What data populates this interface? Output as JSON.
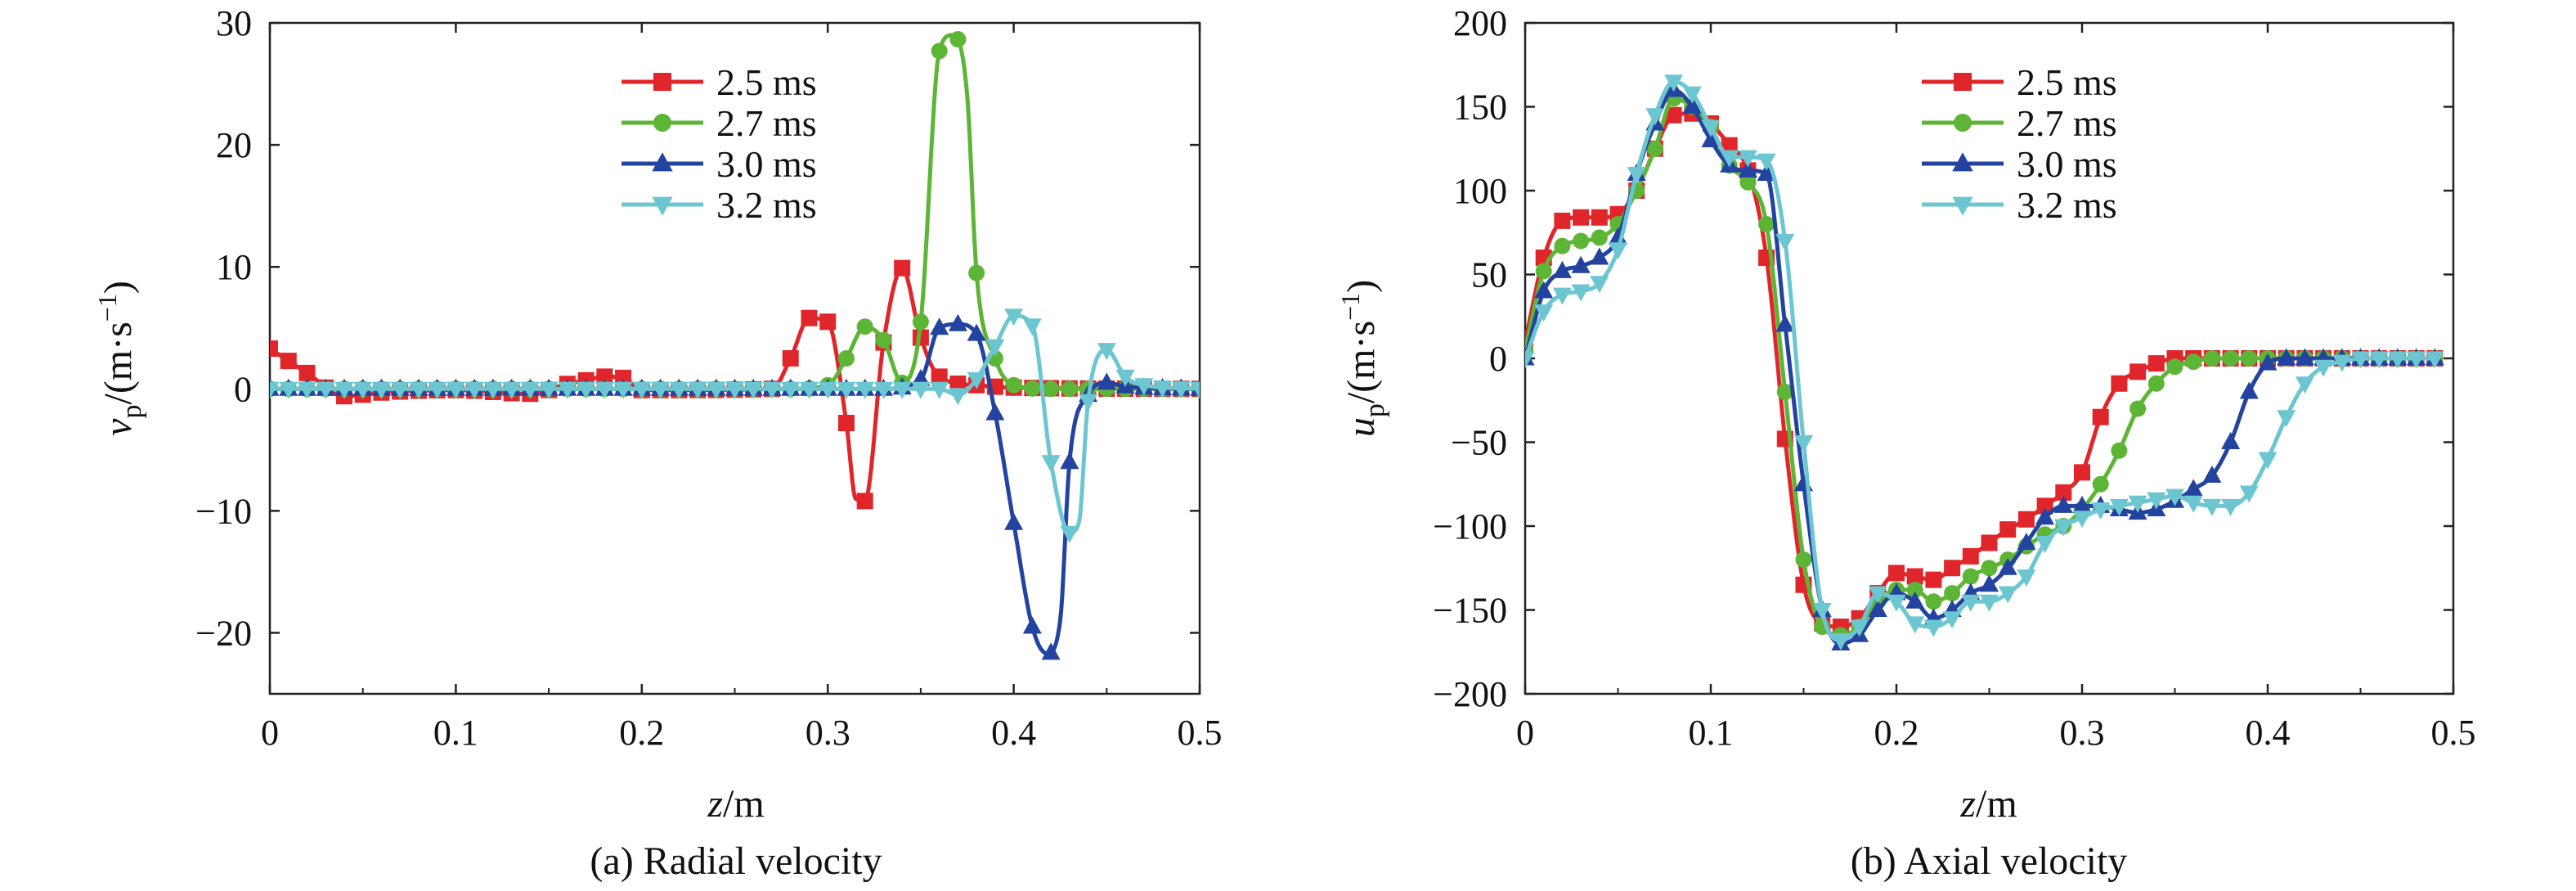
{
  "chart_data": [
    {
      "type": "line",
      "caption": "(a) Radial velocity",
      "xlabel": "z/m",
      "ylabel": "v_p/(m·s^-1)",
      "ylabel_parts": {
        "main": "v",
        "sub": "p",
        "unit": "/(m·s",
        "sup": "−1",
        "close": ")"
      },
      "xlabel_parts": {
        "main": "z",
        "unit": "/m"
      },
      "xlim": [
        0,
        0.5
      ],
      "ylim": [
        -25,
        30
      ],
      "xticks": [
        "0",
        "0.1",
        "0.2",
        "0.3",
        "0.4",
        "0.5"
      ],
      "xtick_values": [
        0,
        0.1,
        0.2,
        0.3,
        0.4,
        0.5
      ],
      "yticks": [
        "30",
        "20",
        "10",
        "0",
        "−10",
        "−20"
      ],
      "ytick_values": [
        30,
        20,
        10,
        0,
        -10,
        -20
      ],
      "legend_position": "top-center",
      "grid": false,
      "series": [
        {
          "name": "2.5 ms",
          "color": "#e0262b",
          "marker": "square",
          "x": [
            0,
            0.02,
            0.04,
            0.06,
            0.1,
            0.14,
            0.16,
            0.17,
            0.18,
            0.19,
            0.2,
            0.27,
            0.28,
            0.29,
            0.3,
            0.31,
            0.315,
            0.32,
            0.33,
            0.34,
            0.35,
            0.36,
            0.38,
            0.4,
            0.5
          ],
          "y": [
            3.3,
            1.3,
            -0.6,
            -0.3,
            -0.1,
            -0.4,
            0.4,
            0.7,
            1.0,
            0.9,
            -0.1,
            0,
            2.5,
            5.8,
            5.5,
            -2.8,
            -9.0,
            -9.2,
            3.8,
            9.9,
            4.2,
            1.0,
            0.3,
            0.1,
            0
          ],
          "markers_x": [
            0,
            0.01,
            0.02,
            0.03,
            0.04,
            0.05,
            0.06,
            0.07,
            0.08,
            0.09,
            0.1,
            0.11,
            0.12,
            0.13,
            0.14,
            0.15,
            0.16,
            0.17,
            0.18,
            0.19,
            0.2,
            0.21,
            0.22,
            0.23,
            0.24,
            0.25,
            0.26,
            0.27,
            0.28,
            0.29,
            0.3,
            0.31,
            0.32,
            0.33,
            0.34,
            0.35,
            0.36,
            0.37,
            0.38,
            0.39,
            0.4,
            0.41,
            0.42,
            0.43,
            0.44,
            0.45,
            0.46,
            0.47,
            0.48,
            0.49,
            0.5
          ]
        },
        {
          "name": "2.7 ms",
          "color": "#5db535",
          "marker": "circle",
          "x": [
            0,
            0.28,
            0.3,
            0.31,
            0.32,
            0.33,
            0.34,
            0.35,
            0.36,
            0.367,
            0.375,
            0.38,
            0.39,
            0.4,
            0.42,
            0.5
          ],
          "y": [
            0,
            0,
            0.3,
            2.5,
            5.1,
            4.0,
            0.5,
            5.5,
            27.7,
            29.0,
            24.0,
            9.5,
            2.5,
            0.3,
            0,
            0
          ],
          "markers_x": [
            0,
            0.01,
            0.02,
            0.03,
            0.04,
            0.05,
            0.06,
            0.07,
            0.08,
            0.09,
            0.1,
            0.11,
            0.12,
            0.13,
            0.14,
            0.15,
            0.16,
            0.17,
            0.18,
            0.19,
            0.2,
            0.21,
            0.22,
            0.23,
            0.24,
            0.25,
            0.26,
            0.27,
            0.28,
            0.29,
            0.3,
            0.31,
            0.32,
            0.33,
            0.34,
            0.35,
            0.36,
            0.37,
            0.38,
            0.39,
            0.4,
            0.41,
            0.42,
            0.43,
            0.44,
            0.45,
            0.46,
            0.47,
            0.48,
            0.49,
            0.5
          ]
        },
        {
          "name": "3.0 ms",
          "color": "#2343a0",
          "marker": "triangle-up",
          "x": [
            0,
            0.33,
            0.35,
            0.36,
            0.37,
            0.38,
            0.39,
            0.4,
            0.41,
            0.418,
            0.425,
            0.43,
            0.44,
            0.45,
            0.46,
            0.5
          ],
          "y": [
            0,
            0,
            0.8,
            5.0,
            5.3,
            4.5,
            -2.0,
            -11.0,
            -19.5,
            -21.7,
            -19.0,
            -6.0,
            -0.5,
            0.5,
            0.2,
            0
          ],
          "markers_x": [
            0,
            0.01,
            0.02,
            0.03,
            0.04,
            0.05,
            0.06,
            0.07,
            0.08,
            0.09,
            0.1,
            0.11,
            0.12,
            0.13,
            0.14,
            0.15,
            0.16,
            0.17,
            0.18,
            0.19,
            0.2,
            0.21,
            0.22,
            0.23,
            0.24,
            0.25,
            0.26,
            0.27,
            0.28,
            0.29,
            0.3,
            0.31,
            0.32,
            0.33,
            0.34,
            0.35,
            0.36,
            0.37,
            0.38,
            0.39,
            0.4,
            0.41,
            0.42,
            0.43,
            0.44,
            0.45,
            0.46,
            0.47,
            0.48,
            0.49,
            0.5
          ]
        },
        {
          "name": "3.2 ms",
          "color": "#6cc6d1",
          "marker": "triangle-down",
          "x": [
            0,
            0.36,
            0.37,
            0.38,
            0.39,
            0.4,
            0.41,
            0.42,
            0.43,
            0.435,
            0.44,
            0.45,
            0.46,
            0.47,
            0.5
          ],
          "y": [
            0,
            0,
            -0.5,
            0.8,
            3.5,
            6.0,
            5.2,
            -6.0,
            -11.8,
            -11.0,
            -1.0,
            3.2,
            1.0,
            0.3,
            0
          ],
          "markers_x": [
            0,
            0.01,
            0.02,
            0.03,
            0.04,
            0.05,
            0.06,
            0.07,
            0.08,
            0.09,
            0.1,
            0.11,
            0.12,
            0.13,
            0.14,
            0.15,
            0.16,
            0.17,
            0.18,
            0.19,
            0.2,
            0.21,
            0.22,
            0.23,
            0.24,
            0.25,
            0.26,
            0.27,
            0.28,
            0.29,
            0.3,
            0.31,
            0.32,
            0.33,
            0.34,
            0.35,
            0.36,
            0.37,
            0.38,
            0.39,
            0.4,
            0.41,
            0.42,
            0.43,
            0.44,
            0.45,
            0.46,
            0.47,
            0.48,
            0.49,
            0.5
          ]
        }
      ]
    },
    {
      "type": "line",
      "caption": "(b) Axial velocity",
      "xlabel": "z/m",
      "ylabel": "u_p/(m·s^-1)",
      "ylabel_parts": {
        "main": "u",
        "sub": "p",
        "unit": "/(m·s",
        "sup": "−1",
        "close": ")"
      },
      "xlabel_parts": {
        "main": "z",
        "unit": "/m"
      },
      "xlim": [
        0,
        0.5
      ],
      "ylim": [
        -200,
        200
      ],
      "xticks": [
        "0",
        "0.1",
        "0.2",
        "0.3",
        "0.4",
        "0.5"
      ],
      "xtick_values": [
        0,
        0.1,
        0.2,
        0.3,
        0.4,
        0.5
      ],
      "yticks": [
        "200",
        "150",
        "100",
        "50",
        "0",
        "−50",
        "−100",
        "−150",
        "−200"
      ],
      "ytick_values": [
        200,
        150,
        100,
        50,
        0,
        -50,
        -100,
        -150,
        -200
      ],
      "legend_position": "top-center",
      "grid": false,
      "series": [
        {
          "name": "2.5 ms",
          "color": "#e0262b",
          "marker": "square",
          "x": [
            0,
            0.01,
            0.02,
            0.03,
            0.04,
            0.05,
            0.06,
            0.07,
            0.08,
            0.09,
            0.1,
            0.11,
            0.12,
            0.13,
            0.14,
            0.15,
            0.16,
            0.17,
            0.18,
            0.19,
            0.2,
            0.21,
            0.22,
            0.23,
            0.24,
            0.25,
            0.26,
            0.27,
            0.28,
            0.29,
            0.3,
            0.31,
            0.32,
            0.33,
            0.34,
            0.35,
            0.36,
            0.37,
            0.38,
            0.39,
            0.4,
            0.41,
            0.42,
            0.43,
            0.44,
            0.45,
            0.46,
            0.47,
            0.48,
            0.49
          ],
          "y": [
            10,
            60,
            82,
            84,
            84,
            86,
            100,
            125,
            145,
            146,
            140,
            127,
            112,
            60,
            -48,
            -135,
            -158,
            -160,
            -155,
            -140,
            -128,
            -130,
            -132,
            -125,
            -118,
            -110,
            -102,
            -96,
            -88,
            -80,
            -68,
            -35,
            -15,
            -8,
            -3,
            0,
            0,
            0,
            0,
            0,
            0,
            0,
            0,
            0,
            0,
            0,
            0,
            0,
            0,
            0
          ]
        },
        {
          "name": "2.7 ms",
          "color": "#5db535",
          "marker": "circle",
          "x": [
            0,
            0.01,
            0.02,
            0.03,
            0.04,
            0.05,
            0.06,
            0.07,
            0.08,
            0.09,
            0.1,
            0.11,
            0.12,
            0.13,
            0.14,
            0.15,
            0.16,
            0.17,
            0.18,
            0.19,
            0.2,
            0.21,
            0.22,
            0.23,
            0.24,
            0.25,
            0.26,
            0.27,
            0.28,
            0.29,
            0.3,
            0.31,
            0.32,
            0.33,
            0.34,
            0.35,
            0.36,
            0.37,
            0.38,
            0.39,
            0.4,
            0.41,
            0.42,
            0.43,
            0.44,
            0.45,
            0.46,
            0.47,
            0.48,
            0.49
          ],
          "y": [
            5,
            52,
            67,
            70,
            72,
            80,
            100,
            125,
            155,
            150,
            138,
            115,
            105,
            80,
            -20,
            -120,
            -160,
            -165,
            -160,
            -145,
            -138,
            -138,
            -145,
            -140,
            -130,
            -125,
            -120,
            -112,
            -105,
            -100,
            -90,
            -75,
            -55,
            -30,
            -15,
            -5,
            -2,
            0,
            0,
            0,
            0,
            0,
            0,
            0,
            0,
            0,
            0,
            0,
            0,
            0
          ]
        },
        {
          "name": "3.0 ms",
          "color": "#2343a0",
          "marker": "triangle-up",
          "x": [
            0,
            0.01,
            0.02,
            0.03,
            0.04,
            0.05,
            0.06,
            0.07,
            0.08,
            0.09,
            0.1,
            0.11,
            0.12,
            0.13,
            0.14,
            0.15,
            0.16,
            0.17,
            0.18,
            0.19,
            0.2,
            0.21,
            0.22,
            0.23,
            0.24,
            0.25,
            0.26,
            0.27,
            0.28,
            0.29,
            0.3,
            0.31,
            0.32,
            0.33,
            0.34,
            0.35,
            0.36,
            0.37,
            0.38,
            0.39,
            0.4,
            0.41,
            0.42,
            0.43,
            0.44,
            0.45,
            0.46,
            0.47,
            0.48,
            0.49
          ],
          "y": [
            0,
            40,
            52,
            55,
            60,
            72,
            110,
            140,
            160,
            150,
            130,
            115,
            112,
            110,
            20,
            -75,
            -150,
            -170,
            -165,
            -150,
            -140,
            -145,
            -155,
            -150,
            -140,
            -135,
            -125,
            -110,
            -95,
            -88,
            -88,
            -88,
            -90,
            -92,
            -90,
            -85,
            -78,
            -70,
            -50,
            -20,
            -3,
            0,
            0,
            0,
            0,
            0,
            0,
            0,
            0,
            0
          ]
        },
        {
          "name": "3.2 ms",
          "color": "#6cc6d1",
          "marker": "triangle-down",
          "x": [
            0,
            0.01,
            0.02,
            0.03,
            0.04,
            0.05,
            0.06,
            0.07,
            0.08,
            0.09,
            0.1,
            0.11,
            0.12,
            0.13,
            0.14,
            0.15,
            0.16,
            0.17,
            0.18,
            0.19,
            0.2,
            0.21,
            0.22,
            0.23,
            0.24,
            0.25,
            0.26,
            0.27,
            0.28,
            0.29,
            0.3,
            0.31,
            0.32,
            0.33,
            0.34,
            0.35,
            0.36,
            0.37,
            0.38,
            0.39,
            0.4,
            0.41,
            0.42,
            0.43,
            0.44,
            0.45,
            0.46,
            0.47,
            0.48,
            0.49
          ],
          "y": [
            0,
            28,
            38,
            40,
            45,
            65,
            110,
            145,
            165,
            158,
            138,
            120,
            120,
            118,
            70,
            -50,
            -150,
            -168,
            -160,
            -140,
            -145,
            -158,
            -160,
            -155,
            -145,
            -145,
            -140,
            -130,
            -110,
            -100,
            -95,
            -90,
            -88,
            -86,
            -84,
            -82,
            -86,
            -88,
            -88,
            -80,
            -60,
            -35,
            -15,
            -5,
            -2,
            0,
            0,
            0,
            0,
            0
          ]
        }
      ]
    }
  ]
}
